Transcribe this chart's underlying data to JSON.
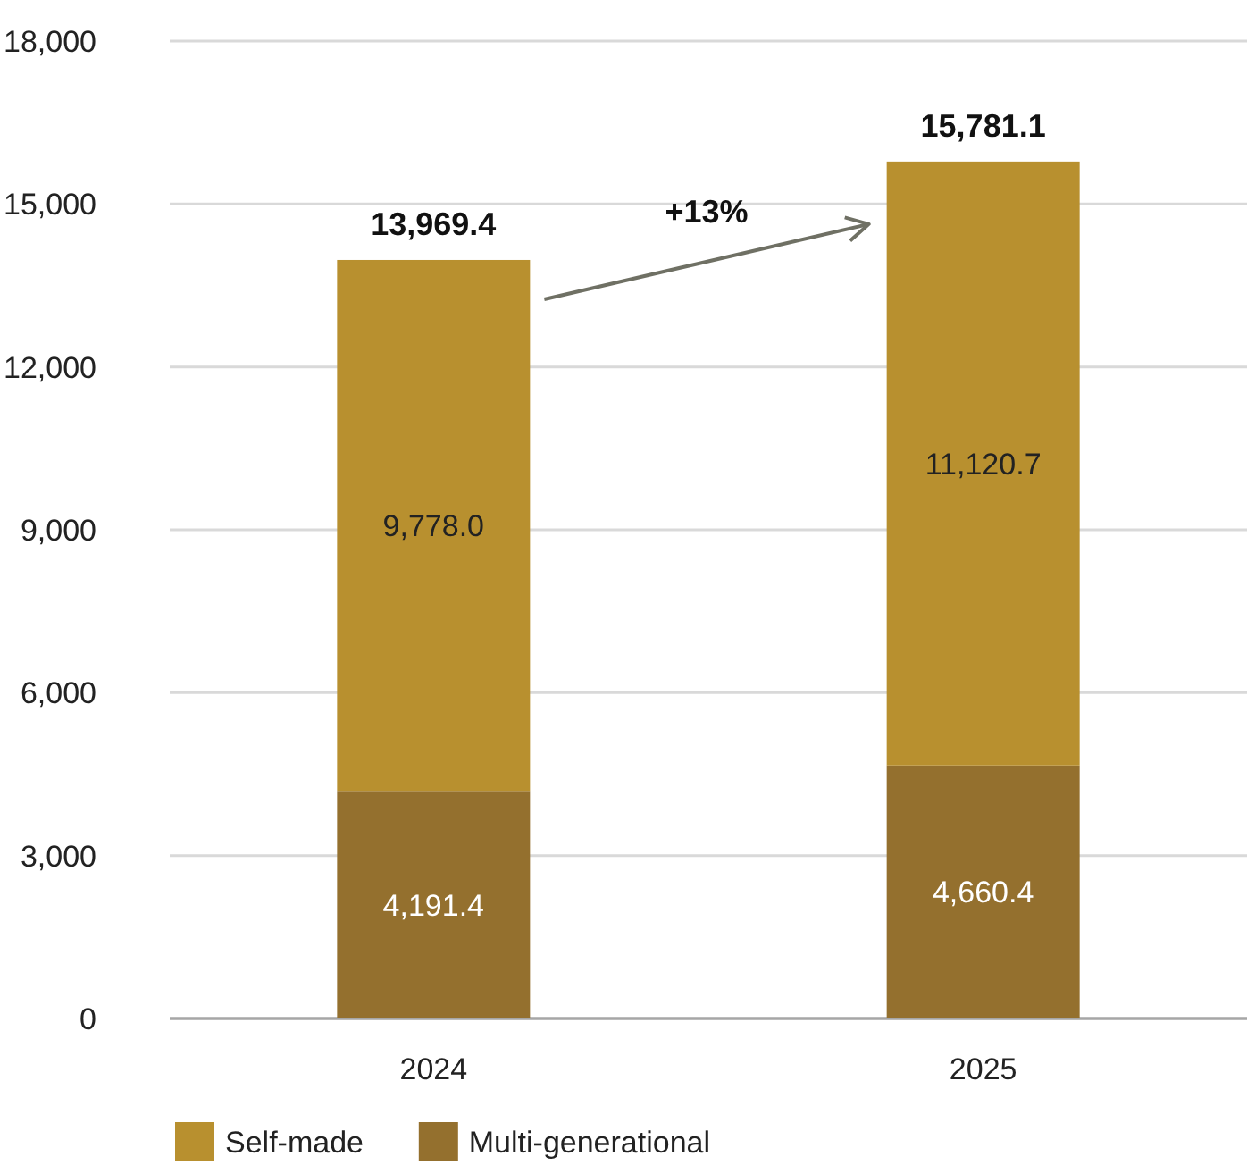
{
  "chart_data": {
    "type": "bar",
    "stacked": true,
    "categories": [
      "2024",
      "2025"
    ],
    "series": [
      {
        "name": "Multi-generational",
        "color": "#94702e",
        "values": [
          4191.4,
          4660.4
        ],
        "value_labels": [
          "4,191.4",
          "4,660.4"
        ]
      },
      {
        "name": "Self-made",
        "color": "#b8902f",
        "values": [
          9778.0,
          11120.7
        ],
        "value_labels": [
          "9,778.0",
          "11,120.7"
        ]
      }
    ],
    "ylim": [
      0,
      18000
    ],
    "yticks": [
      0,
      {
        "value": 3000,
        "label": "3,000"
      },
      {
        "value": 6000,
        "label": "6,000"
      },
      {
        "value": 9000,
        "label": "9,000"
      },
      {
        "value": 12000,
        "label": "12,000"
      },
      {
        "value": 15000,
        "label": "15,000"
      },
      {
        "value": 18000,
        "label": "18,000"
      }
    ],
    "grid": "y",
    "legend": "bottom",
    "totals": [
      "13,969.4",
      "15,781.1"
    ],
    "annotations": [
      "+13%"
    ]
  }
}
